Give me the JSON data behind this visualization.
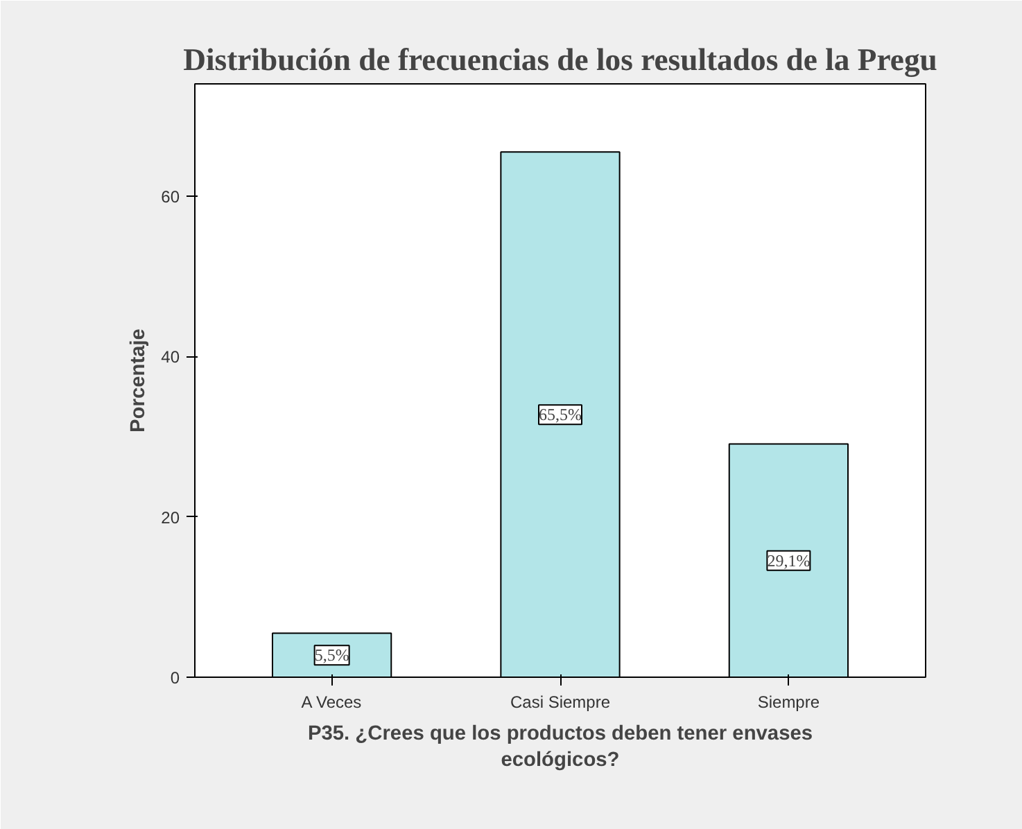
{
  "chart_data": {
    "type": "bar",
    "title": "Distribución de frecuencias de los resultados de la Pregu",
    "categories": [
      "A Veces",
      "Casi Siempre",
      "Siempre"
    ],
    "values": [
      5.5,
      65.5,
      29.1
    ],
    "value_labels": [
      "5,5%",
      "65,5%",
      "29,1%"
    ],
    "color": "#b3e5e8",
    "xlabel": "P35. ¿Crees que los productos deben tener envases\necológicos?",
    "ylabel": "Porcentaje",
    "ylim": [
      0,
      74
    ],
    "yticks": [
      0,
      20,
      40,
      60
    ],
    "grid": false
  }
}
